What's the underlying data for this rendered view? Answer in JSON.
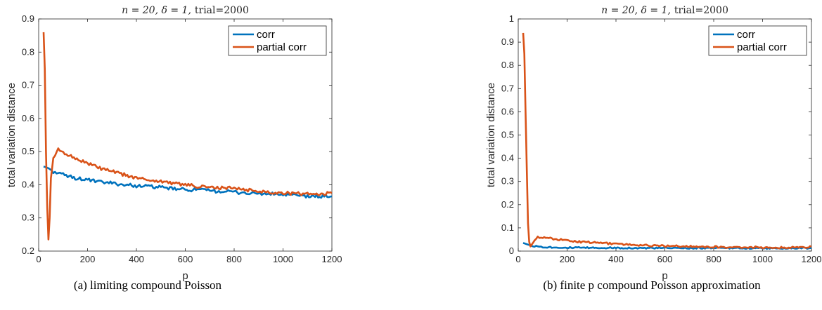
{
  "colors": {
    "corr": "#0072BD",
    "partial_corr": "#D95319",
    "axis": "#262626"
  },
  "chart_data": [
    {
      "type": "line",
      "title": "n = 20, δ = 1, trial=2000",
      "title_parts": {
        "math": "n = 20, δ = 1,",
        "text": "trial=2000"
      },
      "xlabel": "p",
      "ylabel": "total variation distance",
      "xlim": [
        0,
        1200
      ],
      "ylim": [
        0.2,
        0.9
      ],
      "xticks": [
        0,
        200,
        400,
        600,
        800,
        1000,
        1200
      ],
      "yticks": [
        0.2,
        0.3,
        0.4,
        0.5,
        0.6,
        0.7,
        0.8,
        0.9
      ],
      "legend": "top-right",
      "caption": "(a) limiting compound Poisson",
      "series": [
        {
          "name": "corr",
          "x": [
            20,
            40,
            60,
            80,
            100,
            150,
            200,
            250,
            300,
            350,
            400,
            450,
            500,
            550,
            600,
            650,
            700,
            750,
            800,
            850,
            900,
            950,
            1000,
            1050,
            1100,
            1150,
            1200
          ],
          "y": [
            0.455,
            0.45,
            0.44,
            0.435,
            0.43,
            0.42,
            0.415,
            0.408,
            0.405,
            0.4,
            0.397,
            0.395,
            0.392,
            0.388,
            0.385,
            0.385,
            0.382,
            0.38,
            0.378,
            0.375,
            0.373,
            0.372,
            0.37,
            0.368,
            0.365,
            0.365,
            0.365
          ]
        },
        {
          "name": "partial corr",
          "x": [
            20,
            25,
            30,
            35,
            40,
            45,
            50,
            60,
            80,
            100,
            120,
            150,
            200,
            250,
            300,
            350,
            400,
            450,
            500,
            550,
            600,
            650,
            700,
            750,
            800,
            850,
            900,
            950,
            1000,
            1050,
            1100,
            1150,
            1200
          ],
          "y": [
            0.86,
            0.75,
            0.5,
            0.33,
            0.235,
            0.3,
            0.42,
            0.48,
            0.505,
            0.5,
            0.49,
            0.48,
            0.465,
            0.45,
            0.44,
            0.43,
            0.42,
            0.415,
            0.41,
            0.405,
            0.4,
            0.395,
            0.392,
            0.39,
            0.39,
            0.385,
            0.38,
            0.378,
            0.375,
            0.374,
            0.372,
            0.372,
            0.375
          ]
        }
      ]
    },
    {
      "type": "line",
      "title": "n = 20, δ = 1, trial=2000",
      "title_parts": {
        "math": "n = 20, δ = 1,",
        "text": "trial=2000"
      },
      "xlabel": "p",
      "ylabel": "total variation distance",
      "xlim": [
        0,
        1200
      ],
      "ylim": [
        0,
        1
      ],
      "xticks": [
        0,
        200,
        400,
        600,
        800,
        1000,
        1200
      ],
      "yticks": [
        0,
        0.1,
        0.2,
        0.3,
        0.4,
        0.5,
        0.6,
        0.7,
        0.8,
        0.9,
        1
      ],
      "legend": "top-right",
      "caption": "(b) finite p compound Poisson approximation",
      "series": [
        {
          "name": "corr",
          "x": [
            20,
            40,
            60,
            80,
            100,
            150,
            200,
            300,
            400,
            500,
            600,
            700,
            800,
            900,
            1000,
            1100,
            1200
          ],
          "y": [
            0.035,
            0.028,
            0.022,
            0.02,
            0.018,
            0.016,
            0.015,
            0.014,
            0.014,
            0.013,
            0.013,
            0.013,
            0.013,
            0.013,
            0.012,
            0.012,
            0.013
          ]
        },
        {
          "name": "partial corr",
          "x": [
            20,
            25,
            30,
            35,
            40,
            45,
            50,
            60,
            80,
            100,
            150,
            200,
            250,
            300,
            350,
            400,
            450,
            500,
            600,
            700,
            800,
            900,
            1000,
            1100,
            1200
          ],
          "y": [
            0.94,
            0.85,
            0.6,
            0.35,
            0.12,
            0.04,
            0.02,
            0.035,
            0.06,
            0.06,
            0.052,
            0.045,
            0.04,
            0.037,
            0.034,
            0.031,
            0.028,
            0.025,
            0.022,
            0.02,
            0.018,
            0.017,
            0.016,
            0.015,
            0.018
          ]
        }
      ]
    }
  ]
}
